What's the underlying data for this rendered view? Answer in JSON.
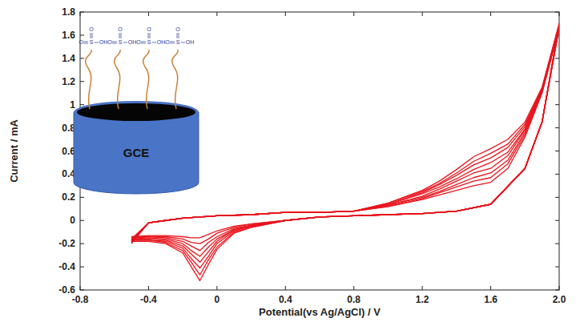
{
  "chart_data": {
    "type": "line",
    "x_label": "Potential(vs Ag/AgCl) / V",
    "y_label": "Current / mA",
    "annotations": [
      "GCE",
      "O",
      "S",
      "OH"
    ],
    "xlim": [
      -0.8,
      2.0
    ],
    "xticks": [
      -0.8,
      -0.4,
      0,
      0.4,
      0.8,
      1.2,
      1.6,
      {
        "value": 2.0,
        "label": "2.0"
      }
    ],
    "ylim": [
      -0.6,
      1.8
    ],
    "yticks": [
      -0.6,
      -0.4,
      -0.2,
      0,
      0.2,
      0.4,
      0.6,
      0.8,
      1,
      1.2,
      1.4,
      1.6,
      1.8
    ],
    "grid": false,
    "x": [
      -0.5,
      -0.4,
      -0.3,
      -0.2,
      -0.1,
      0,
      0.2,
      0.4,
      0.6,
      0.8,
      1.0,
      1.2,
      1.3,
      1.4,
      1.5,
      1.6,
      1.7,
      1.8,
      1.9,
      2.0,
      1.9,
      1.8,
      1.6,
      1.4,
      1.2,
      1.0,
      0.8,
      0.6,
      0.4,
      0.2,
      0.1,
      0,
      -0.05,
      -0.1,
      -0.15,
      -0.2,
      -0.3,
      -0.4,
      -0.5
    ],
    "series": [
      {
        "color": "#e8141c",
        "values": [
          -0.2,
          -0.02,
          0,
          0.02,
          0.03,
          0.04,
          0.05,
          0.07,
          0.07,
          0.08,
          0.15,
          0.26,
          0.34,
          0.44,
          0.55,
          0.62,
          0.7,
          0.85,
          1.15,
          1.7,
          0.85,
          0.45,
          0.14,
          0.08,
          0.06,
          0.05,
          0.04,
          0.03,
          0,
          -0.06,
          -0.11,
          -0.25,
          -0.38,
          -0.52,
          -0.4,
          -0.28,
          -0.2,
          -0.18,
          -0.18
        ]
      },
      {
        "color": "#e8141c",
        "values": [
          -0.19,
          -0.02,
          0,
          0.02,
          0.03,
          0.04,
          0.05,
          0.07,
          0.07,
          0.08,
          0.15,
          0.25,
          0.32,
          0.41,
          0.51,
          0.58,
          0.66,
          0.83,
          1.14,
          1.69,
          0.85,
          0.45,
          0.14,
          0.08,
          0.06,
          0.05,
          0.04,
          0.03,
          0,
          -0.06,
          -0.1,
          -0.23,
          -0.34,
          -0.47,
          -0.36,
          -0.26,
          -0.19,
          -0.17,
          -0.17
        ]
      },
      {
        "color": "#e8141c",
        "values": [
          -0.19,
          -0.02,
          0,
          0.02,
          0.03,
          0.04,
          0.05,
          0.07,
          0.07,
          0.08,
          0.14,
          0.24,
          0.31,
          0.39,
          0.48,
          0.54,
          0.63,
          0.81,
          1.14,
          1.69,
          0.85,
          0.45,
          0.14,
          0.08,
          0.06,
          0.05,
          0.04,
          0.03,
          0,
          -0.05,
          -0.09,
          -0.2,
          -0.31,
          -0.41,
          -0.33,
          -0.24,
          -0.18,
          -0.17,
          -0.17
        ]
      },
      {
        "color": "#e8141c",
        "values": [
          -0.18,
          -0.02,
          0,
          0.02,
          0.03,
          0.04,
          0.05,
          0.07,
          0.07,
          0.08,
          0.14,
          0.23,
          0.29,
          0.36,
          0.44,
          0.5,
          0.59,
          0.79,
          1.13,
          1.68,
          0.85,
          0.45,
          0.14,
          0.08,
          0.06,
          0.05,
          0.04,
          0.03,
          0,
          -0.05,
          -0.08,
          -0.18,
          -0.27,
          -0.36,
          -0.29,
          -0.22,
          -0.17,
          -0.16,
          -0.16
        ]
      },
      {
        "color": "#e8141c",
        "values": [
          -0.18,
          -0.02,
          0,
          0.02,
          0.03,
          0.04,
          0.05,
          0.07,
          0.07,
          0.08,
          0.13,
          0.21,
          0.27,
          0.34,
          0.41,
          0.45,
          0.56,
          0.78,
          1.12,
          1.68,
          0.85,
          0.45,
          0.14,
          0.08,
          0.06,
          0.05,
          0.04,
          0.03,
          0,
          -0.04,
          -0.08,
          -0.16,
          -0.23,
          -0.31,
          -0.26,
          -0.2,
          -0.16,
          -0.15,
          -0.16
        ]
      },
      {
        "color": "#e8141c",
        "values": [
          -0.17,
          -0.02,
          0,
          0.02,
          0.03,
          0.04,
          0.05,
          0.07,
          0.07,
          0.08,
          0.13,
          0.2,
          0.25,
          0.31,
          0.37,
          0.41,
          0.52,
          0.76,
          1.11,
          1.67,
          0.85,
          0.45,
          0.14,
          0.08,
          0.06,
          0.05,
          0.04,
          0.03,
          0,
          -0.04,
          -0.07,
          -0.14,
          -0.19,
          -0.26,
          -0.22,
          -0.18,
          -0.15,
          -0.14,
          -0.15
        ]
      },
      {
        "color": "#e8141c",
        "values": [
          -0.17,
          -0.02,
          0,
          0.02,
          0.03,
          0.04,
          0.05,
          0.07,
          0.07,
          0.08,
          0.12,
          0.19,
          0.24,
          0.29,
          0.34,
          0.37,
          0.49,
          0.74,
          1.11,
          1.67,
          0.85,
          0.45,
          0.14,
          0.08,
          0.06,
          0.05,
          0.04,
          0.03,
          0,
          -0.03,
          -0.06,
          -0.11,
          -0.16,
          -0.2,
          -0.19,
          -0.16,
          -0.14,
          -0.14,
          -0.15
        ]
      },
      {
        "color": "#e8141c",
        "values": [
          -0.16,
          -0.02,
          0,
          0.02,
          0.03,
          0.04,
          0.05,
          0.07,
          0.07,
          0.08,
          0.12,
          0.18,
          0.22,
          0.26,
          0.3,
          0.33,
          0.45,
          0.72,
          1.1,
          1.66,
          0.85,
          0.45,
          0.14,
          0.08,
          0.06,
          0.05,
          0.04,
          0.03,
          0,
          -0.03,
          -0.05,
          -0.09,
          -0.12,
          -0.15,
          -0.15,
          -0.14,
          -0.13,
          -0.13,
          -0.14
        ]
      }
    ]
  }
}
